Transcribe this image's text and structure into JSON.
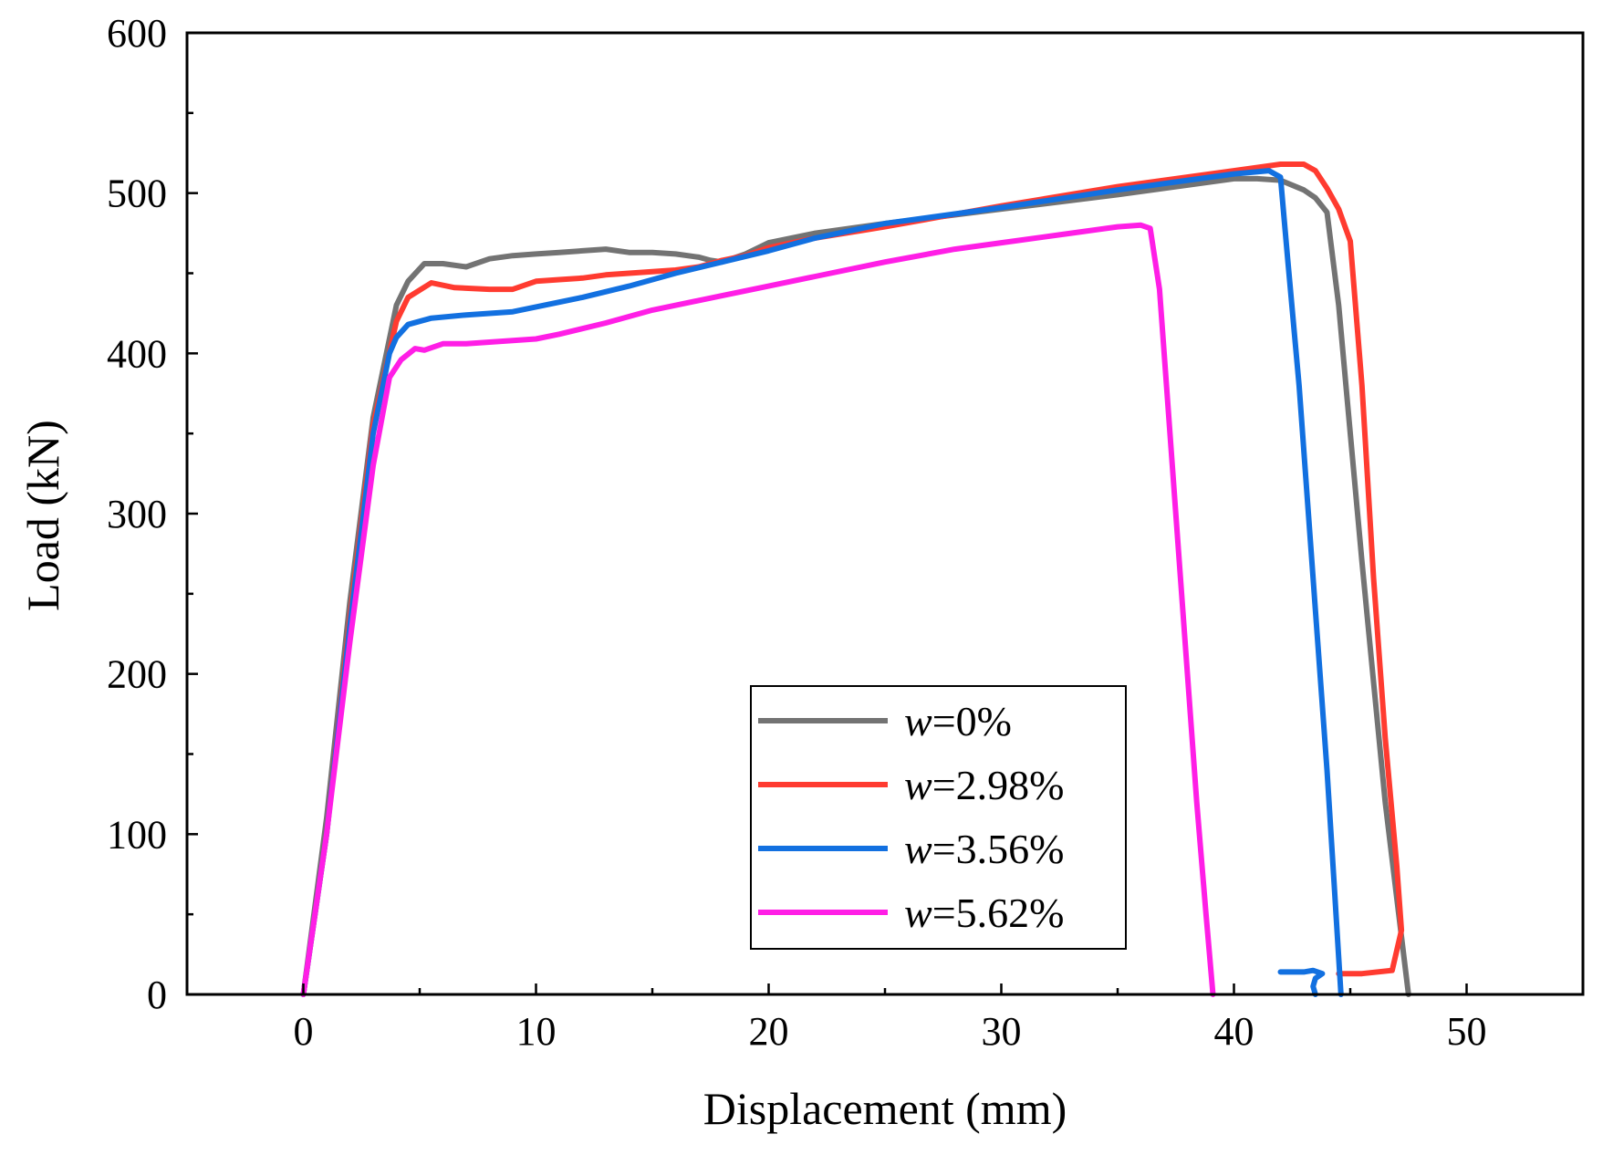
{
  "chart_data": {
    "type": "line",
    "title": "",
    "xlabel": "Displacement (mm)",
    "ylabel": "Load (kN)",
    "xlim": [
      -5,
      55
    ],
    "ylim": [
      0,
      600
    ],
    "x_major_ticks": [
      0,
      10,
      20,
      30,
      40,
      50
    ],
    "y_major_ticks": [
      0,
      100,
      200,
      300,
      400,
      500,
      600
    ],
    "x_tick_labels": [
      "0",
      "10",
      "20",
      "30",
      "40",
      "50"
    ],
    "y_tick_labels": [
      "0",
      "100",
      "200",
      "300",
      "400",
      "500",
      "600"
    ],
    "grid": false,
    "legend_position": "bottom-center",
    "legend_prefix": "w",
    "series": [
      {
        "name": "w=0%",
        "label_prefix": "w",
        "label_value": "=0%",
        "color": "#737373",
        "points": [
          [
            0,
            0
          ],
          [
            1,
            110
          ],
          [
            2,
            245
          ],
          [
            3,
            360
          ],
          [
            4,
            430
          ],
          [
            4.5,
            445
          ],
          [
            5.2,
            456
          ],
          [
            6,
            456
          ],
          [
            7,
            454
          ],
          [
            8,
            459
          ],
          [
            9,
            461
          ],
          [
            10,
            462
          ],
          [
            11,
            463
          ],
          [
            12,
            464
          ],
          [
            13,
            465
          ],
          [
            14,
            463
          ],
          [
            15,
            463
          ],
          [
            16,
            462
          ],
          [
            17,
            460
          ],
          [
            17.5,
            458
          ],
          [
            18,
            457
          ],
          [
            19,
            462
          ],
          [
            20,
            469
          ],
          [
            22,
            475
          ],
          [
            25,
            481
          ],
          [
            30,
            490
          ],
          [
            35,
            499
          ],
          [
            38,
            505
          ],
          [
            40,
            509
          ],
          [
            41,
            509
          ],
          [
            42,
            508
          ],
          [
            43,
            502
          ],
          [
            43.5,
            497
          ],
          [
            44,
            488
          ],
          [
            44.5,
            430
          ],
          [
            45,
            350
          ],
          [
            45.5,
            270
          ],
          [
            46,
            195
          ],
          [
            46.5,
            120
          ],
          [
            47,
            60
          ],
          [
            47.5,
            0
          ]
        ]
      },
      {
        "name": "w=2.98%",
        "label_prefix": "w",
        "label_value": "=2.98%",
        "color": "#ff3b30",
        "points": [
          [
            0,
            0
          ],
          [
            1,
            100
          ],
          [
            2,
            235
          ],
          [
            3,
            355
          ],
          [
            4,
            420
          ],
          [
            4.5,
            435
          ],
          [
            5.5,
            444
          ],
          [
            6.5,
            441
          ],
          [
            8,
            440
          ],
          [
            9,
            440
          ],
          [
            10,
            445
          ],
          [
            11,
            446
          ],
          [
            12,
            447
          ],
          [
            13,
            449
          ],
          [
            14,
            450
          ],
          [
            15,
            451
          ],
          [
            16,
            452
          ],
          [
            17,
            454
          ],
          [
            18,
            458
          ],
          [
            19,
            461
          ],
          [
            20,
            466
          ],
          [
            22,
            472
          ],
          [
            25,
            479
          ],
          [
            30,
            492
          ],
          [
            35,
            504
          ],
          [
            40,
            514
          ],
          [
            42,
            518
          ],
          [
            43,
            518
          ],
          [
            43.5,
            514
          ],
          [
            44,
            503
          ],
          [
            44.5,
            490
          ],
          [
            45,
            470
          ],
          [
            45.5,
            380
          ],
          [
            46,
            260
          ],
          [
            46.5,
            160
          ],
          [
            47,
            80
          ],
          [
            47.2,
            40
          ],
          [
            46.8,
            15
          ],
          [
            45.5,
            13
          ],
          [
            44.5,
            13
          ]
        ]
      },
      {
        "name": "w=3.56%",
        "label_prefix": "w",
        "label_value": "=3.56%",
        "color": "#1270e0",
        "points": [
          [
            0,
            0
          ],
          [
            1,
            100
          ],
          [
            2,
            230
          ],
          [
            3,
            350
          ],
          [
            3.7,
            400
          ],
          [
            4,
            410
          ],
          [
            4.5,
            418
          ],
          [
            5.5,
            422
          ],
          [
            7,
            424
          ],
          [
            9,
            426
          ],
          [
            10,
            429
          ],
          [
            12,
            435
          ],
          [
            14,
            442
          ],
          [
            16,
            450
          ],
          [
            18,
            457
          ],
          [
            20,
            464
          ],
          [
            22,
            472
          ],
          [
            25,
            481
          ],
          [
            30,
            491
          ],
          [
            35,
            502
          ],
          [
            40,
            512
          ],
          [
            41.5,
            514
          ],
          [
            42,
            510
          ],
          [
            42.3,
            460
          ],
          [
            42.8,
            380
          ],
          [
            43.2,
            300
          ],
          [
            43.6,
            220
          ],
          [
            44,
            140
          ],
          [
            44.3,
            70
          ],
          [
            44.6,
            0
          ]
        ]
      },
      {
        "name": "w=5.62%",
        "label_prefix": "w",
        "label_value": "=5.62%",
        "color": "#ff1ee6",
        "points": [
          [
            0,
            0
          ],
          [
            1,
            100
          ],
          [
            2,
            220
          ],
          [
            3,
            330
          ],
          [
            3.7,
            385
          ],
          [
            4.2,
            396
          ],
          [
            4.8,
            403
          ],
          [
            5.2,
            402
          ],
          [
            6,
            406
          ],
          [
            7,
            406
          ],
          [
            8,
            407
          ],
          [
            9,
            408
          ],
          [
            10,
            409
          ],
          [
            11,
            412
          ],
          [
            13,
            419
          ],
          [
            15,
            427
          ],
          [
            18,
            436
          ],
          [
            20,
            442
          ],
          [
            22,
            448
          ],
          [
            25,
            457
          ],
          [
            28,
            465
          ],
          [
            30,
            469
          ],
          [
            33,
            475
          ],
          [
            35,
            479
          ],
          [
            36,
            480
          ],
          [
            36.4,
            478
          ],
          [
            36.8,
            440
          ],
          [
            37.2,
            360
          ],
          [
            37.6,
            280
          ],
          [
            38,
            200
          ],
          [
            38.4,
            120
          ],
          [
            38.8,
            50
          ],
          [
            39.1,
            0
          ]
        ]
      }
    ],
    "fragment": {
      "color": "#1270e0",
      "points": [
        [
          42,
          14
        ],
        [
          43,
          14
        ],
        [
          43.4,
          15
        ],
        [
          43.8,
          13
        ],
        [
          43.5,
          10
        ],
        [
          43.4,
          5
        ],
        [
          43.5,
          0
        ]
      ]
    }
  }
}
